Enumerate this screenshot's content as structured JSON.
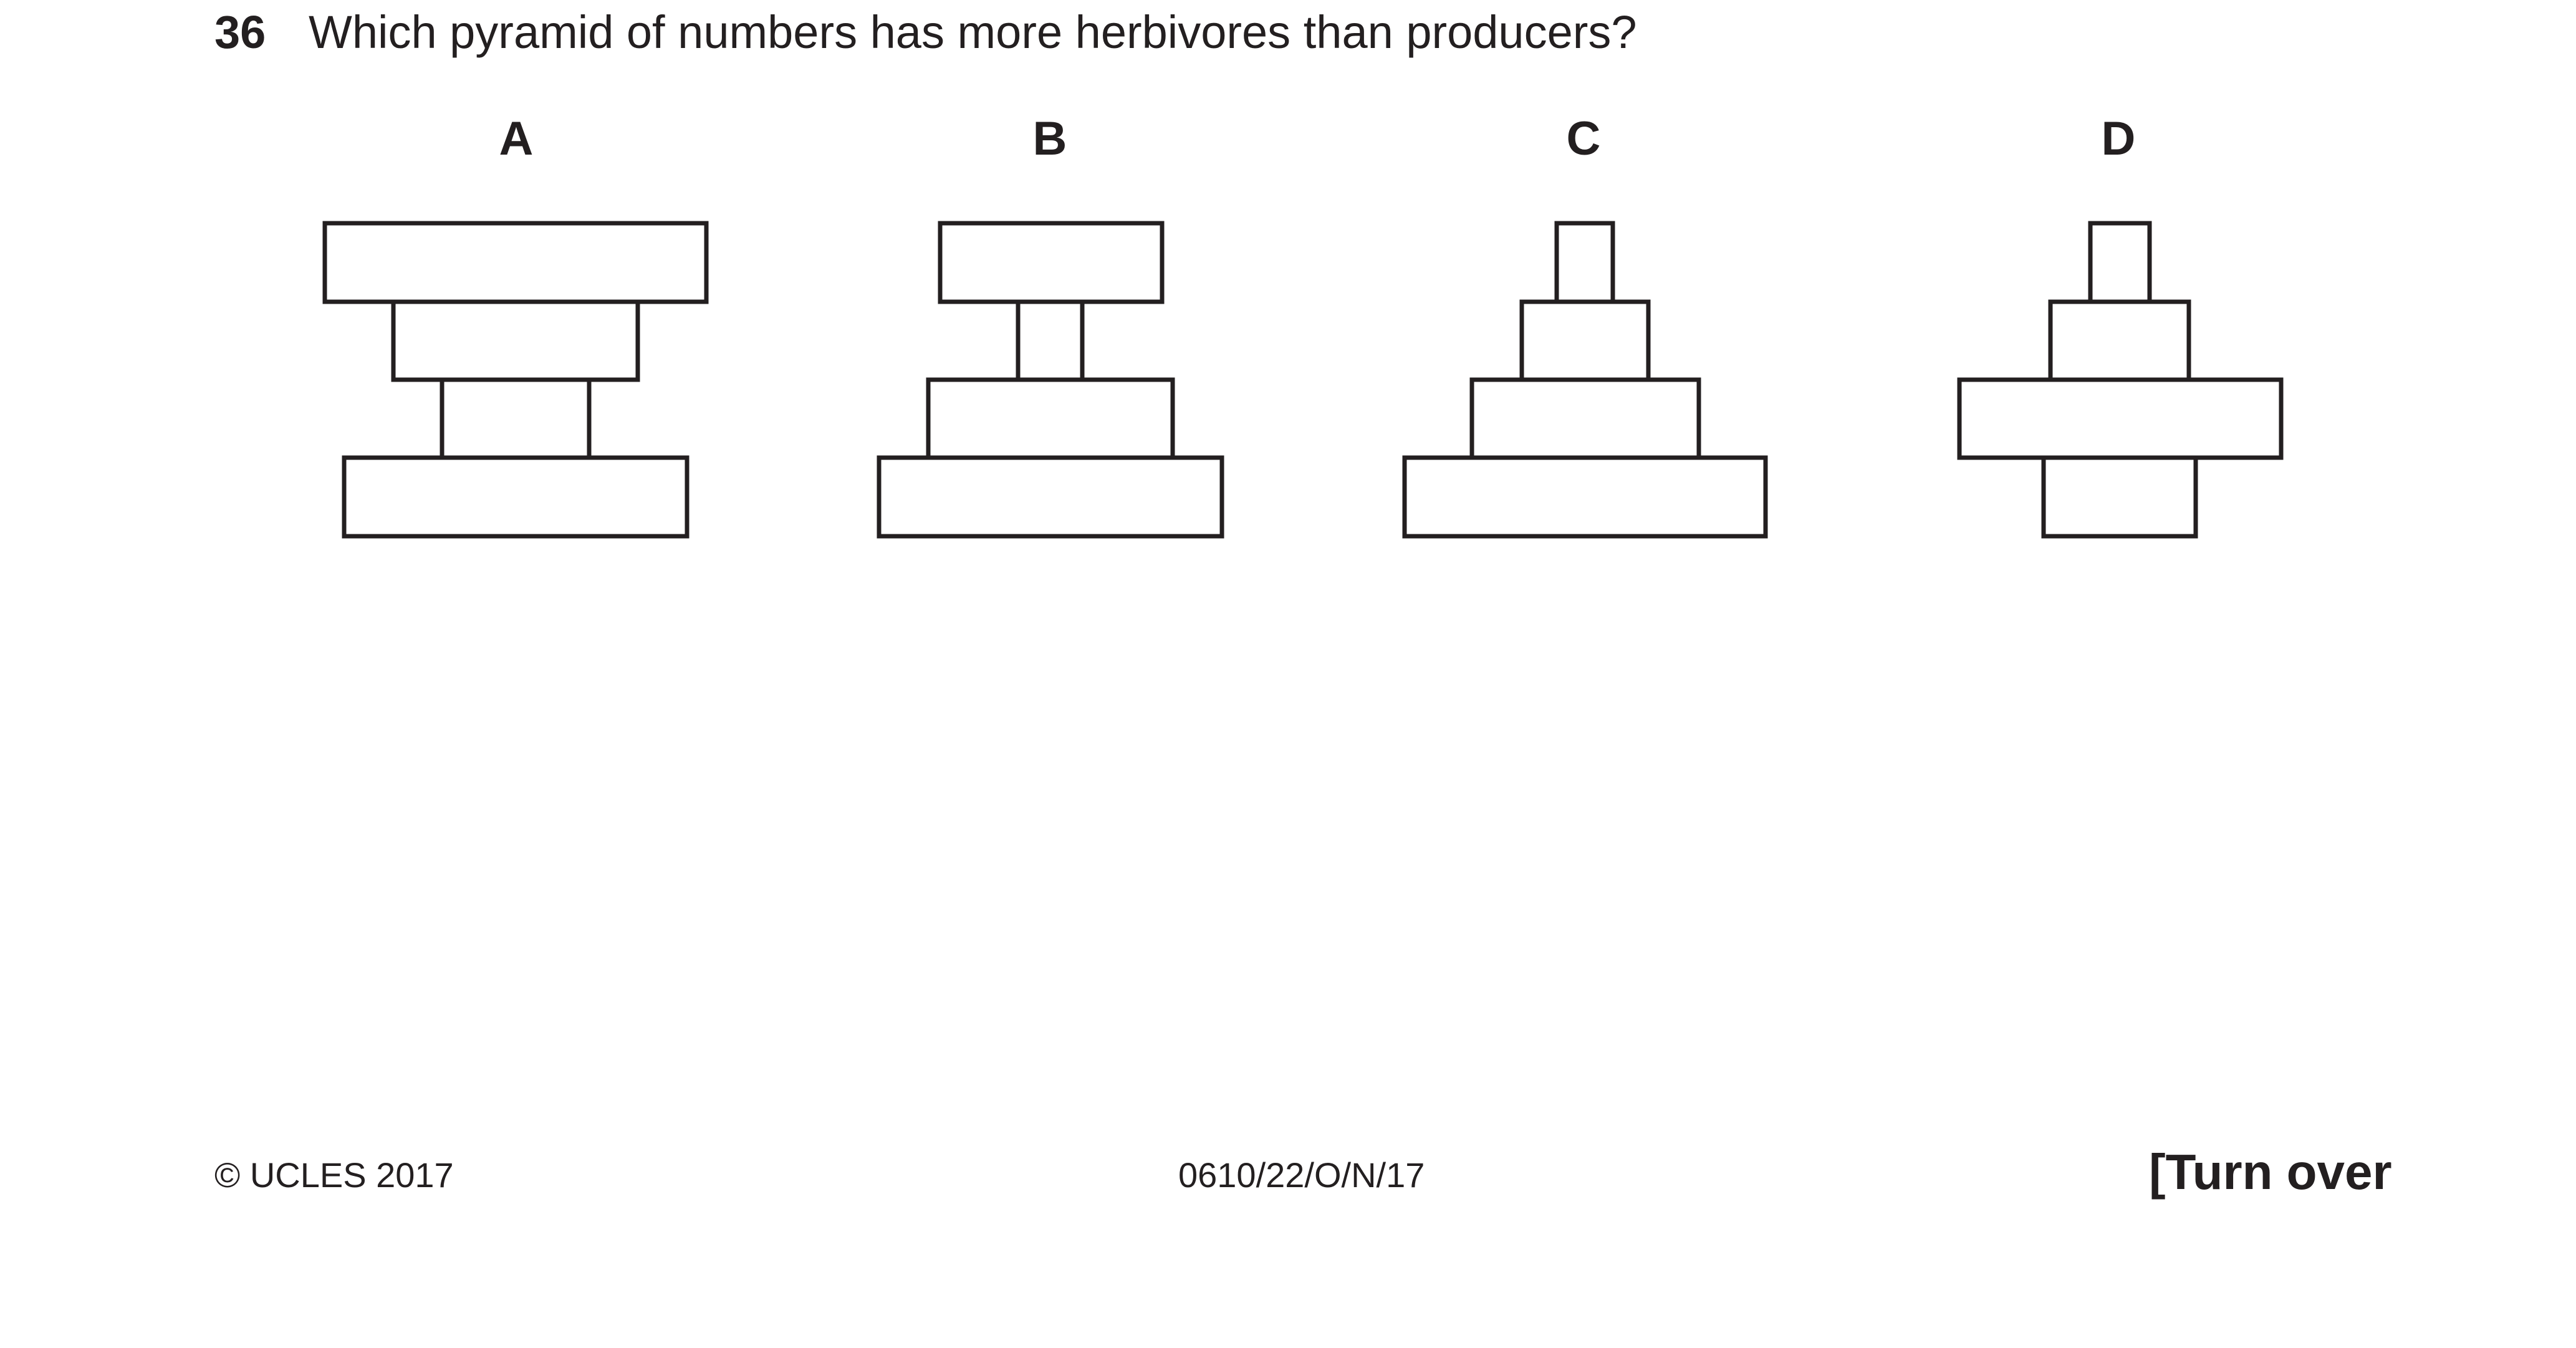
{
  "question": {
    "number": "36",
    "text": "Which pyramid of numbers has more herbivores than producers?"
  },
  "options": [
    {
      "label": "A",
      "levels": [
        "level-1",
        "level-2",
        "level-3",
        "level-4"
      ]
    },
    {
      "label": "B",
      "levels": [
        "level-1",
        "level-2",
        "level-3",
        "level-4"
      ]
    },
    {
      "label": "C",
      "levels": [
        "level-1",
        "level-2",
        "level-3",
        "level-4"
      ]
    },
    {
      "label": "D",
      "levels": [
        "level-1",
        "level-2",
        "level-3",
        "level-4"
      ]
    }
  ],
  "footer": {
    "copyright": "© UCLES 2017",
    "code": "0610/22/O/N/17",
    "turn_over": "[Turn over"
  }
}
